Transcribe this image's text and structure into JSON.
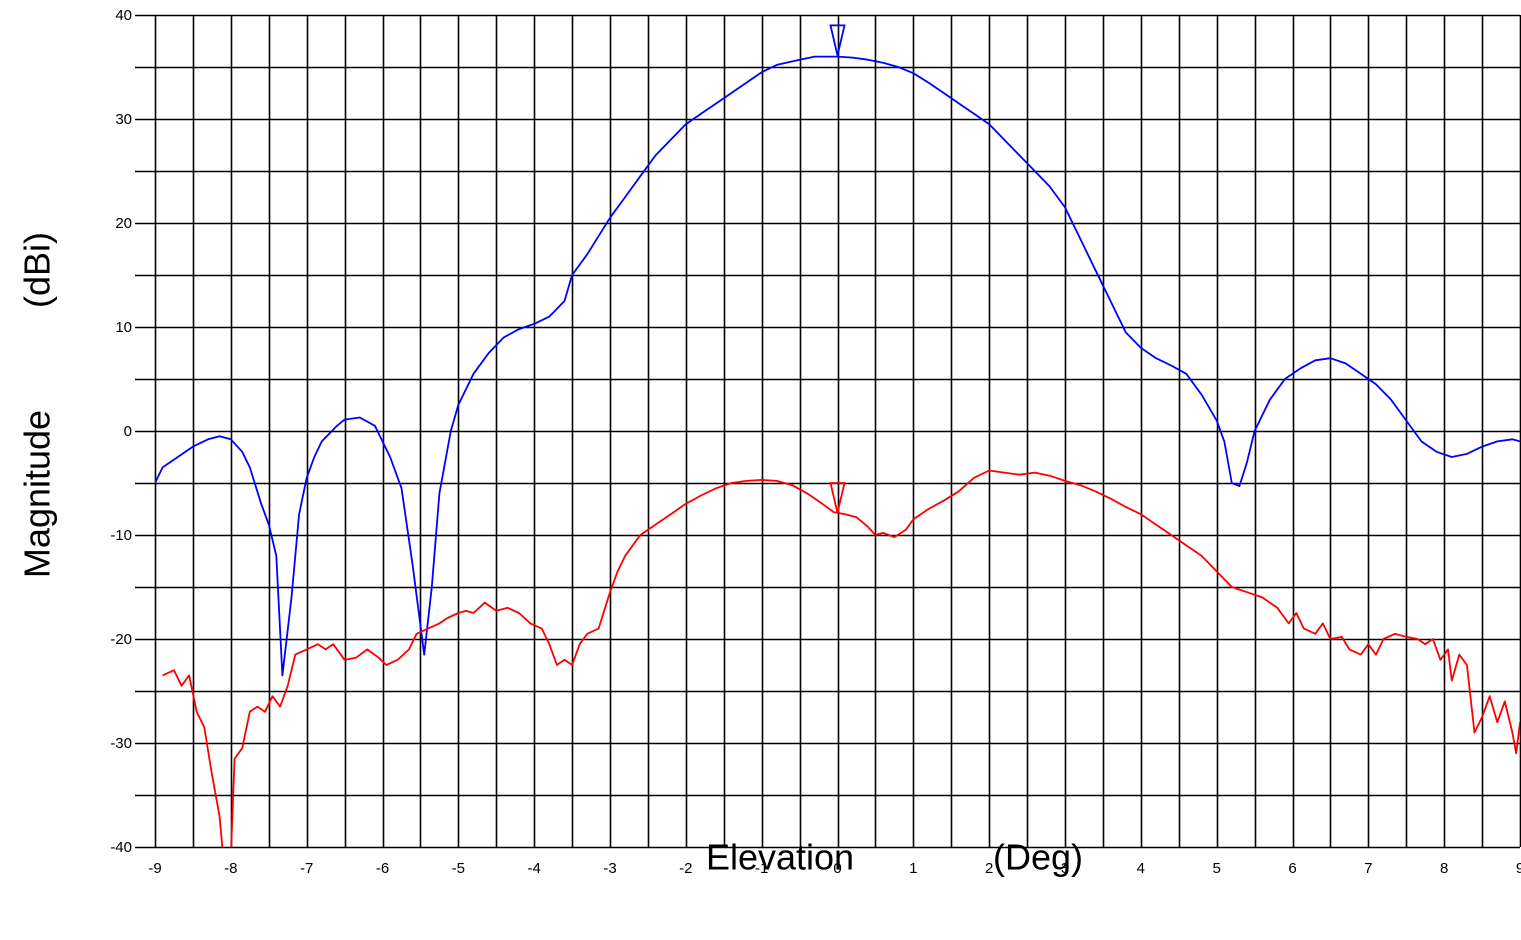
{
  "chart_data": {
    "type": "line",
    "title": "",
    "xlabel": "Elevation",
    "xunit": "(Deg)",
    "ylabel": "Magnitude",
    "yunit": "(dBi)",
    "xlim": [
      -9,
      9
    ],
    "ylim": [
      -40,
      40
    ],
    "x_ticks": [
      "-9",
      "-8",
      "-7",
      "-6",
      "-5",
      "-4",
      "-3",
      "-2",
      "-1",
      "0",
      "1",
      "2",
      "3",
      "4",
      "5",
      "6",
      "7",
      "8",
      "9"
    ],
    "y_ticks": [
      "40",
      "30",
      "20",
      "10",
      "0",
      "-10",
      "-20",
      "-30",
      "-40"
    ],
    "grid": true,
    "grid_minor_step": 0.5,
    "markers": [
      {
        "x": 0.0,
        "y": 39.0,
        "color": "#0000ff",
        "shape": "triangle-down"
      },
      {
        "x": 0.0,
        "y": -5.0,
        "color": "#ff0000",
        "shape": "triangle-down"
      }
    ],
    "series": [
      {
        "color": "#0000ff",
        "points": [
          [
            -9.0,
            -5.0
          ],
          [
            -8.9,
            -3.5
          ],
          [
            -8.7,
            -2.5
          ],
          [
            -8.5,
            -1.5
          ],
          [
            -8.3,
            -0.8
          ],
          [
            -8.15,
            -0.5
          ],
          [
            -8.0,
            -0.8
          ],
          [
            -7.85,
            -2.0
          ],
          [
            -7.75,
            -3.5
          ],
          [
            -7.6,
            -7.0
          ],
          [
            -7.5,
            -9.0
          ],
          [
            -7.4,
            -12.0
          ],
          [
            -7.32,
            -23.5
          ],
          [
            -7.2,
            -16.0
          ],
          [
            -7.1,
            -8.0
          ],
          [
            -7.0,
            -4.5
          ],
          [
            -6.9,
            -2.5
          ],
          [
            -6.8,
            -1.0
          ],
          [
            -6.6,
            0.5
          ],
          [
            -6.5,
            1.1
          ],
          [
            -6.3,
            1.3
          ],
          [
            -6.1,
            0.5
          ],
          [
            -6.0,
            -1.0
          ],
          [
            -5.9,
            -2.5
          ],
          [
            -5.75,
            -5.5
          ],
          [
            -5.6,
            -13.0
          ],
          [
            -5.45,
            -21.5
          ],
          [
            -5.35,
            -15.0
          ],
          [
            -5.25,
            -6.0
          ],
          [
            -5.1,
            0.0
          ],
          [
            -5.0,
            2.5
          ],
          [
            -4.8,
            5.5
          ],
          [
            -4.6,
            7.5
          ],
          [
            -4.4,
            9.0
          ],
          [
            -4.2,
            9.8
          ],
          [
            -4.0,
            10.3
          ],
          [
            -3.8,
            11.0
          ],
          [
            -3.6,
            12.5
          ],
          [
            -3.5,
            15.0
          ],
          [
            -3.3,
            17.0
          ],
          [
            -3.0,
            20.5
          ],
          [
            -2.8,
            22.5
          ],
          [
            -2.6,
            24.5
          ],
          [
            -2.4,
            26.5
          ],
          [
            -2.2,
            28.0
          ],
          [
            -2.0,
            29.5
          ],
          [
            -1.8,
            30.5
          ],
          [
            -1.5,
            32.0
          ],
          [
            -1.2,
            33.5
          ],
          [
            -1.0,
            34.5
          ],
          [
            -0.8,
            35.2
          ],
          [
            -0.5,
            35.7
          ],
          [
            -0.3,
            36.0
          ],
          [
            0.0,
            36.0
          ],
          [
            0.2,
            35.9
          ],
          [
            0.4,
            35.7
          ],
          [
            0.6,
            35.4
          ],
          [
            0.8,
            35.0
          ],
          [
            1.0,
            34.4
          ],
          [
            1.2,
            33.5
          ],
          [
            1.4,
            32.5
          ],
          [
            1.6,
            31.5
          ],
          [
            1.8,
            30.5
          ],
          [
            2.0,
            29.5
          ],
          [
            2.2,
            28.0
          ],
          [
            2.4,
            26.5
          ],
          [
            2.6,
            25.0
          ],
          [
            2.8,
            23.5
          ],
          [
            3.0,
            21.5
          ],
          [
            3.2,
            18.5
          ],
          [
            3.4,
            15.5
          ],
          [
            3.6,
            12.5
          ],
          [
            3.8,
            9.5
          ],
          [
            4.0,
            8.0
          ],
          [
            4.2,
            7.0
          ],
          [
            4.4,
            6.3
          ],
          [
            4.6,
            5.5
          ],
          [
            4.8,
            3.5
          ],
          [
            5.0,
            1.0
          ],
          [
            5.1,
            -1.0
          ],
          [
            5.2,
            -5.0
          ],
          [
            5.3,
            -5.3
          ],
          [
            5.4,
            -3.0
          ],
          [
            5.5,
            0.0
          ],
          [
            5.7,
            3.0
          ],
          [
            5.9,
            5.0
          ],
          [
            6.1,
            6.0
          ],
          [
            6.3,
            6.8
          ],
          [
            6.5,
            7.0
          ],
          [
            6.7,
            6.5
          ],
          [
            6.9,
            5.5
          ],
          [
            7.1,
            4.5
          ],
          [
            7.3,
            3.0
          ],
          [
            7.5,
            1.0
          ],
          [
            7.7,
            -1.0
          ],
          [
            7.9,
            -2.0
          ],
          [
            8.1,
            -2.5
          ],
          [
            8.3,
            -2.2
          ],
          [
            8.5,
            -1.5
          ],
          [
            8.7,
            -1.0
          ],
          [
            8.9,
            -0.8
          ],
          [
            9.0,
            -1.0
          ]
        ]
      },
      {
        "color": "#ff0000",
        "points": [
          [
            -8.9,
            -23.5
          ],
          [
            -8.75,
            -23.0
          ],
          [
            -8.65,
            -24.5
          ],
          [
            -8.55,
            -23.5
          ],
          [
            -8.45,
            -27.0
          ],
          [
            -8.35,
            -28.5
          ],
          [
            -8.25,
            -33.0
          ],
          [
            -8.15,
            -37.0
          ],
          [
            -8.1,
            -41.0
          ],
          [
            -8.0,
            -41.0
          ],
          [
            -7.95,
            -31.5
          ],
          [
            -7.85,
            -30.5
          ],
          [
            -7.75,
            -27.0
          ],
          [
            -7.65,
            -26.5
          ],
          [
            -7.55,
            -27.0
          ],
          [
            -7.45,
            -25.5
          ],
          [
            -7.35,
            -26.5
          ],
          [
            -7.25,
            -24.5
          ],
          [
            -7.15,
            -21.5
          ],
          [
            -7.0,
            -21.0
          ],
          [
            -6.85,
            -20.5
          ],
          [
            -6.75,
            -21.0
          ],
          [
            -6.65,
            -20.5
          ],
          [
            -6.5,
            -22.0
          ],
          [
            -6.35,
            -21.8
          ],
          [
            -6.2,
            -21.0
          ],
          [
            -6.05,
            -21.8
          ],
          [
            -5.95,
            -22.5
          ],
          [
            -5.8,
            -22.0
          ],
          [
            -5.65,
            -21.0
          ],
          [
            -5.55,
            -19.5
          ],
          [
            -5.4,
            -19.0
          ],
          [
            -5.25,
            -18.5
          ],
          [
            -5.15,
            -18.0
          ],
          [
            -5.0,
            -17.5
          ],
          [
            -4.9,
            -17.3
          ],
          [
            -4.8,
            -17.5
          ],
          [
            -4.65,
            -16.5
          ],
          [
            -4.5,
            -17.3
          ],
          [
            -4.35,
            -17.0
          ],
          [
            -4.2,
            -17.5
          ],
          [
            -4.05,
            -18.5
          ],
          [
            -3.9,
            -19.0
          ],
          [
            -3.8,
            -20.5
          ],
          [
            -3.7,
            -22.5
          ],
          [
            -3.6,
            -22.0
          ],
          [
            -3.5,
            -22.5
          ],
          [
            -3.4,
            -20.5
          ],
          [
            -3.3,
            -19.5
          ],
          [
            -3.15,
            -19.0
          ],
          [
            -3.0,
            -15.5
          ],
          [
            -2.9,
            -13.5
          ],
          [
            -2.8,
            -12.0
          ],
          [
            -2.6,
            -10.0
          ],
          [
            -2.4,
            -9.0
          ],
          [
            -2.2,
            -8.0
          ],
          [
            -2.0,
            -7.0
          ],
          [
            -1.8,
            -6.2
          ],
          [
            -1.6,
            -5.5
          ],
          [
            -1.4,
            -5.0
          ],
          [
            -1.2,
            -4.8
          ],
          [
            -1.0,
            -4.7
          ],
          [
            -0.8,
            -4.8
          ],
          [
            -0.6,
            -5.2
          ],
          [
            -0.4,
            -6.0
          ],
          [
            -0.2,
            -7.0
          ],
          [
            -0.05,
            -7.8
          ],
          [
            0.1,
            -8.0
          ],
          [
            0.25,
            -8.3
          ],
          [
            0.4,
            -9.2
          ],
          [
            0.5,
            -10.0
          ],
          [
            0.6,
            -9.8
          ],
          [
            0.75,
            -10.2
          ],
          [
            0.9,
            -9.5
          ],
          [
            1.0,
            -8.5
          ],
          [
            1.2,
            -7.5
          ],
          [
            1.4,
            -6.7
          ],
          [
            1.6,
            -5.8
          ],
          [
            1.8,
            -4.5
          ],
          [
            2.0,
            -3.8
          ],
          [
            2.2,
            -4.0
          ],
          [
            2.4,
            -4.2
          ],
          [
            2.6,
            -4.0
          ],
          [
            2.8,
            -4.3
          ],
          [
            3.0,
            -4.8
          ],
          [
            3.2,
            -5.2
          ],
          [
            3.4,
            -5.8
          ],
          [
            3.6,
            -6.5
          ],
          [
            3.8,
            -7.3
          ],
          [
            4.0,
            -8.0
          ],
          [
            4.2,
            -9.0
          ],
          [
            4.4,
            -10.0
          ],
          [
            4.6,
            -11.0
          ],
          [
            4.8,
            -12.0
          ],
          [
            5.0,
            -13.5
          ],
          [
            5.2,
            -15.0
          ],
          [
            5.4,
            -15.5
          ],
          [
            5.6,
            -16.0
          ],
          [
            5.8,
            -17.0
          ],
          [
            5.95,
            -18.5
          ],
          [
            6.05,
            -17.5
          ],
          [
            6.15,
            -19.0
          ],
          [
            6.3,
            -19.5
          ],
          [
            6.4,
            -18.5
          ],
          [
            6.5,
            -20.0
          ],
          [
            6.65,
            -19.8
          ],
          [
            6.75,
            -21.0
          ],
          [
            6.9,
            -21.5
          ],
          [
            7.0,
            -20.5
          ],
          [
            7.1,
            -21.5
          ],
          [
            7.2,
            -20.0
          ],
          [
            7.35,
            -19.5
          ],
          [
            7.5,
            -19.8
          ],
          [
            7.65,
            -20.0
          ],
          [
            7.75,
            -20.5
          ],
          [
            7.85,
            -20.0
          ],
          [
            7.95,
            -22.0
          ],
          [
            8.05,
            -21.0
          ],
          [
            8.1,
            -24.0
          ],
          [
            8.2,
            -21.5
          ],
          [
            8.3,
            -22.5
          ],
          [
            8.4,
            -29.0
          ],
          [
            8.5,
            -27.5
          ],
          [
            8.6,
            -25.5
          ],
          [
            8.7,
            -28.0
          ],
          [
            8.8,
            -26.0
          ],
          [
            8.9,
            -29.0
          ],
          [
            8.95,
            -31.0
          ],
          [
            9.0,
            -28.0
          ]
        ]
      }
    ]
  }
}
